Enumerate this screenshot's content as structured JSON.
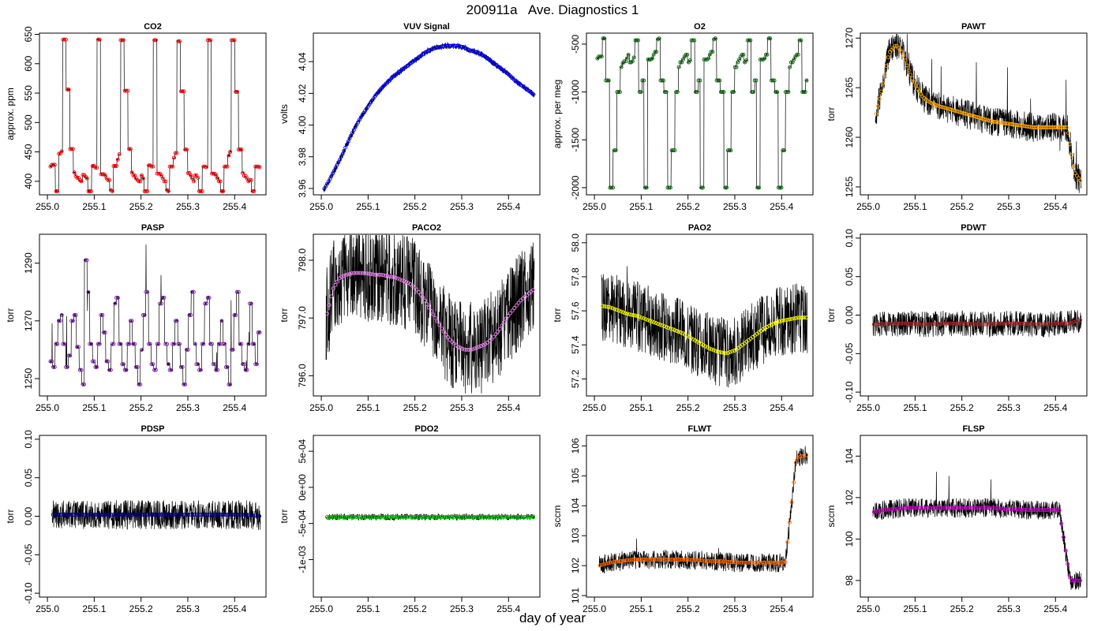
{
  "page": {
    "title": "200911a   Ave. Diagnostics 1",
    "xlabel": "day of year"
  },
  "chart_data": [
    {
      "type": "line",
      "title": "CO2",
      "ylabel": "approx. ppm",
      "ylim": [
        377,
        652
      ],
      "yticks": [
        {
          "v": 400,
          "label": "400"
        },
        {
          "v": 450,
          "label": "450"
        },
        {
          "v": 500,
          "label": "500"
        },
        {
          "v": 550,
          "label": "550"
        },
        {
          "v": 600,
          "label": "600"
        },
        {
          "v": 650,
          "label": "650"
        }
      ],
      "xlim": [
        254.983,
        255.467
      ],
      "xticks": [
        255.0,
        255.1,
        255.2,
        255.3,
        255.4
      ],
      "x_start": 255.005,
      "x_end": 255.455,
      "marker_color": "#ff0000",
      "marker_count": 150,
      "series": {
        "name": "",
        "values": [
          425,
          428,
          428,
          383,
          383,
          447,
          451,
          641,
          641,
          556,
          556,
          455,
          455,
          415,
          409,
          406,
          402,
          400,
          411,
          408,
          405,
          383,
          383,
          426,
          426,
          423,
          641,
          641,
          412,
          412,
          410,
          405,
          402,
          385,
          383,
          426,
          426,
          437,
          446,
          640,
          640,
          554,
          554,
          455,
          455,
          415,
          410,
          405,
          402,
          400,
          410,
          405,
          383,
          383,
          427,
          427,
          425,
          640,
          640,
          413,
          413,
          410,
          405,
          400,
          385,
          383,
          425,
          425,
          440,
          448,
          638,
          638,
          553,
          553,
          454,
          454,
          414,
          410,
          405,
          400,
          410,
          406,
          383,
          383,
          425,
          425,
          424,
          640,
          640,
          413,
          413,
          410,
          405,
          400,
          383,
          383,
          425,
          425,
          444,
          450,
          640,
          640,
          552,
          552,
          454,
          454,
          414,
          409,
          405,
          400,
          402,
          383,
          383,
          425,
          425,
          424
        ]
      }
    },
    {
      "type": "line",
      "title": "VUV Signal",
      "ylabel": "volts",
      "ylim": [
        3.956,
        4.058
      ],
      "yticks": [
        {
          "v": 3.96,
          "label": "3.96"
        },
        {
          "v": 3.98,
          "label": "3.98"
        },
        {
          "v": 4.0,
          "label": "4.00"
        },
        {
          "v": 4.02,
          "label": "4.02"
        },
        {
          "v": 4.04,
          "label": "4.04"
        }
      ],
      "xlim": [
        254.983,
        255.467
      ],
      "xticks": [
        255.0,
        255.1,
        255.2,
        255.3,
        255.4
      ],
      "x_start": 255.005,
      "x_end": 255.455,
      "marker_color": "#0000ff",
      "marker_count": 150,
      "series": {
        "name": "",
        "values": [
          3.959,
          3.966,
          3.974,
          3.982,
          3.991,
          3.999,
          4.006,
          4.012,
          4.018,
          4.023,
          4.027,
          4.031,
          4.034,
          4.037,
          4.04,
          4.043,
          4.046,
          4.048,
          4.049,
          4.05,
          4.05,
          4.05,
          4.049,
          4.047,
          4.046,
          4.044,
          4.041,
          4.038,
          4.035,
          4.032,
          4.028,
          4.025,
          4.022,
          4.019
        ]
      }
    },
    {
      "type": "line",
      "title": "O2",
      "ylabel": "approx. per meg",
      "ylim": [
        -2075,
        -385
      ],
      "yticks": [
        {
          "v": -2000,
          "label": "-2000"
        },
        {
          "v": -1500,
          "label": "-1500"
        },
        {
          "v": -1000,
          "label": "-1000"
        },
        {
          "v": -500,
          "label": "-500"
        }
      ],
      "xlim": [
        254.983,
        255.467
      ],
      "xticks": [
        255.0,
        255.1,
        255.2,
        255.3,
        255.4
      ],
      "x_start": 255.005,
      "x_end": 255.455,
      "marker_color": "#006400",
      "marker_count": 150,
      "series": {
        "name": "",
        "values": [
          -650,
          -630,
          -630,
          -440,
          -440,
          -880,
          -880,
          -2000,
          -2000,
          -1610,
          -1610,
          -1000,
          -1000,
          -740,
          -700,
          -680,
          -650,
          -610,
          -690,
          -680,
          -640,
          -460,
          -460,
          -1000,
          -1000,
          -880,
          -2000,
          -2000,
          -660,
          -660,
          -650,
          -610,
          -580,
          -450,
          -440,
          -880,
          -880,
          -1000,
          -1000,
          -2000,
          -2000,
          -1610,
          -1610,
          -1000,
          -1000,
          -740,
          -690,
          -660,
          -630,
          -610,
          -690,
          -670,
          -460,
          -460,
          -1000,
          -1000,
          -880,
          -2000,
          -2000,
          -660,
          -660,
          -650,
          -610,
          -580,
          -450,
          -440,
          -880,
          -880,
          -1000,
          -1000,
          -2000,
          -2000,
          -1610,
          -1610,
          -1000,
          -1000,
          -740,
          -690,
          -660,
          -630,
          -610,
          -690,
          -670,
          -460,
          -460,
          -1000,
          -1000,
          -880,
          -2000,
          -2000,
          -660,
          -660,
          -650,
          -610,
          -440,
          -440,
          -880,
          -880,
          -1000,
          -1000,
          -2000,
          -2000,
          -1610,
          -1610,
          -1000,
          -1000,
          -740,
          -690,
          -660,
          -630,
          -610,
          -460,
          -460,
          -1000,
          -1000,
          -880
        ]
      }
    },
    {
      "type": "line",
      "title": "PAWT",
      "ylabel": "torr",
      "ylim": [
        1254.2,
        1270.5
      ],
      "yticks": [
        {
          "v": 1255,
          "label": "1255"
        },
        {
          "v": 1260,
          "label": "1260"
        },
        {
          "v": 1265,
          "label": "1265"
        },
        {
          "v": 1270,
          "label": "1270"
        }
      ],
      "xlim": [
        254.983,
        255.467
      ],
      "xticks": [
        255.0,
        255.1,
        255.2,
        255.3,
        255.4
      ],
      "x_start": 255.015,
      "x_end": 255.455,
      "marker_color": "#ffa500",
      "marker_count": 120,
      "series": {
        "name": "",
        "values": [
          1262,
          1265,
          1268.5,
          1269.3,
          1268.5,
          1266.5,
          1265,
          1264,
          1263.5,
          1263.2,
          1263,
          1262.8,
          1262.6,
          1262.4,
          1262.2,
          1262,
          1261.8,
          1261.6,
          1261.5,
          1261.4,
          1261.3,
          1261.2,
          1261.1,
          1261,
          1261,
          1261,
          1261,
          1261,
          1261,
          1256.5,
          1255.5
        ]
      }
    },
    {
      "type": "line",
      "title": "PASP",
      "ylabel": "torr",
      "ylim": [
        1244,
        1300
      ],
      "yticks": [
        {
          "v": 1250,
          "label": "1250"
        },
        {
          "v": 1270,
          "label": "1270"
        },
        {
          "v": 1290,
          "label": "1290"
        }
      ],
      "xlim": [
        254.983,
        255.467
      ],
      "xticks": [
        255.0,
        255.1,
        255.2,
        255.3,
        255.4
      ],
      "x_start": 255.005,
      "x_end": 255.455,
      "marker_color": "#7b1fa2",
      "marker_count": 150,
      "series": {
        "name": "",
        "values": [
          1256,
          1254,
          1262,
          1270,
          1272,
          1262,
          1254,
          1258,
          1270,
          1272,
          1261,
          1253,
          1248,
          1291,
          1280,
          1262,
          1256,
          1254,
          1262,
          1272,
          1266,
          1256,
          1253,
          1262,
          1276,
          1278,
          1262,
          1255,
          1253,
          1262,
          1270,
          1262,
          1254,
          1248,
          1260,
          1272,
          1280,
          1262,
          1255,
          1253,
          1262,
          1276,
          1278,
          1262,
          1255,
          1253,
          1262,
          1270,
          1262,
          1254,
          1248,
          1260,
          1272,
          1280,
          1262,
          1255,
          1253,
          1262,
          1276,
          1278,
          1262,
          1255,
          1253,
          1262,
          1270,
          1262,
          1254,
          1248,
          1260,
          1272,
          1280,
          1262,
          1255,
          1253,
          1262,
          1276,
          1262,
          1255,
          1266
        ]
      }
    },
    {
      "type": "line",
      "title": "PACO2",
      "ylabel": "torr",
      "ylim": [
        795.65,
        798.45
      ],
      "yticks": [
        {
          "v": 796.0,
          "label": "796.0"
        },
        {
          "v": 797.0,
          "label": "797.0"
        },
        {
          "v": 798.0,
          "label": "798.0"
        }
      ],
      "xlim": [
        254.983,
        255.467
      ],
      "xticks": [
        255.0,
        255.1,
        255.2,
        255.3,
        255.4
      ],
      "x_start": 255.01,
      "x_end": 255.455,
      "marker_color": "#ee82ee",
      "marker_count": 100,
      "series": {
        "name": "",
        "values": [
          797.0,
          797.5,
          797.7,
          797.75,
          797.78,
          797.78,
          797.77,
          797.75,
          797.75,
          797.72,
          797.7,
          797.65,
          797.6,
          797.5,
          797.35,
          797.15,
          796.95,
          796.75,
          796.6,
          796.5,
          796.45,
          796.45,
          796.5,
          796.55,
          796.65,
          796.8,
          797.0,
          797.15,
          797.3,
          797.4,
          797.5
        ]
      }
    },
    {
      "type": "line",
      "title": "PAO2",
      "ylabel": "torr",
      "ylim": [
        57.1,
        58.05
      ],
      "yticks": [
        {
          "v": 57.2,
          "label": "57.2"
        },
        {
          "v": 57.4,
          "label": "57.4"
        },
        {
          "v": 57.6,
          "label": "57.6"
        },
        {
          "v": 57.8,
          "label": "57.8"
        },
        {
          "v": 58.0,
          "label": "58.0"
        }
      ],
      "xlim": [
        254.983,
        255.467
      ],
      "xticks": [
        255.0,
        255.1,
        255.2,
        255.3,
        255.4
      ],
      "x_start": 255.015,
      "x_end": 255.455,
      "marker_color": "#ffff00",
      "marker_count": 100,
      "series": {
        "name": "",
        "values": [
          57.63,
          57.62,
          57.6,
          57.58,
          57.57,
          57.55,
          57.53,
          57.51,
          57.49,
          57.47,
          57.44,
          57.41,
          57.38,
          57.36,
          57.35,
          57.37,
          57.41,
          57.45,
          57.49,
          57.52,
          57.54,
          57.55,
          57.56,
          57.56
        ]
      }
    },
    {
      "type": "line",
      "title": "PDWT",
      "ylabel": "torr",
      "ylim": [
        -0.105,
        0.105
      ],
      "yticks": [
        {
          "v": -0.1,
          "label": "-0.10"
        },
        {
          "v": -0.05,
          "label": "-0.05"
        },
        {
          "v": 0.0,
          "label": "0.00"
        },
        {
          "v": 0.05,
          "label": "0.05"
        },
        {
          "v": 0.1,
          "label": "0.10"
        }
      ],
      "xlim": [
        254.983,
        255.467
      ],
      "xticks": [
        255.0,
        255.1,
        255.2,
        255.3,
        255.4
      ],
      "x_start": 255.01,
      "x_end": 255.455,
      "marker_color": "#a52a2a",
      "marker_count": 100,
      "series": {
        "name": "",
        "values": [
          -0.012,
          -0.012,
          -0.011,
          -0.011,
          -0.012,
          -0.012,
          -0.011,
          -0.011,
          -0.011,
          -0.012,
          -0.012,
          -0.011,
          -0.011,
          -0.011,
          -0.012,
          -0.012,
          -0.011,
          -0.011,
          -0.006
        ]
      }
    },
    {
      "type": "line",
      "title": "PDSP",
      "ylabel": "torr",
      "ylim": [
        -0.105,
        0.105
      ],
      "yticks": [
        {
          "v": -0.1,
          "label": "-0.10"
        },
        {
          "v": -0.05,
          "label": "-0.05"
        },
        {
          "v": 0.0,
          "label": "0.00"
        },
        {
          "v": 0.05,
          "label": "0.05"
        },
        {
          "v": 0.1,
          "label": "0.10"
        }
      ],
      "xlim": [
        254.983,
        255.467
      ],
      "xticks": [
        255.0,
        255.1,
        255.2,
        255.3,
        255.4
      ],
      "x_start": 255.01,
      "x_end": 255.455,
      "marker_color": "#00008b",
      "marker_count": 100,
      "series": {
        "name": "",
        "values": [
          0.002,
          0.002,
          0.002,
          0.002,
          0.002,
          0.002,
          0.002,
          0.002,
          0.002,
          0.002,
          0.002,
          0.002,
          0.002,
          0.002,
          0.002,
          0.0
        ]
      }
    },
    {
      "type": "line",
      "title": "PDO2",
      "ylabel": "torr",
      "ylim": [
        -0.00152,
        0.00072
      ],
      "yticks": [
        {
          "v": -0.001,
          "label": "-1e-03"
        },
        {
          "v": -0.0005,
          "label": "-5e-04"
        },
        {
          "v": 0.0,
          "label": "0e+00"
        },
        {
          "v": 0.0005,
          "label": "5e-04"
        }
      ],
      "xlim": [
        254.983,
        255.467
      ],
      "xticks": [
        255.0,
        255.1,
        255.2,
        255.3,
        255.4
      ],
      "x_start": 255.01,
      "x_end": 255.455,
      "marker_color": "#00cc00",
      "marker_count": 100,
      "series": {
        "name": "",
        "values": [
          -0.00041,
          -0.00041,
          -0.00041,
          -0.00041,
          -0.00041,
          -0.00041
        ]
      }
    },
    {
      "type": "line",
      "title": "FLWT",
      "ylabel": "sccm",
      "ylim": [
        100.95,
        106.35
      ],
      "yticks": [
        {
          "v": 101,
          "label": "101"
        },
        {
          "v": 102,
          "label": "102"
        },
        {
          "v": 103,
          "label": "103"
        },
        {
          "v": 104,
          "label": "104"
        },
        {
          "v": 105,
          "label": "105"
        },
        {
          "v": 106,
          "label": "106"
        }
      ],
      "xlim": [
        254.983,
        255.467
      ],
      "xticks": [
        255.0,
        255.1,
        255.2,
        255.3,
        255.4
      ],
      "x_start": 255.01,
      "x_end": 255.455,
      "marker_color": "#ff6600",
      "marker_count": 100,
      "series": {
        "name": "",
        "values": [
          102.0,
          102.1,
          102.15,
          102.2,
          102.2,
          102.2,
          102.2,
          102.2,
          102.2,
          102.18,
          102.15,
          102.15,
          102.12,
          102.1,
          102.1,
          102.1,
          102.1,
          102.1,
          105.6,
          105.7
        ]
      }
    },
    {
      "type": "line",
      "title": "FLSP",
      "ylabel": "sccm",
      "ylim": [
        97.2,
        105.0
      ],
      "yticks": [
        {
          "v": 98,
          "label": "98"
        },
        {
          "v": 100,
          "label": "100"
        },
        {
          "v": 102,
          "label": "102"
        },
        {
          "v": 104,
          "label": "104"
        }
      ],
      "xlim": [
        254.983,
        255.467
      ],
      "xticks": [
        255.0,
        255.1,
        255.2,
        255.3,
        255.4
      ],
      "x_start": 255.01,
      "x_end": 255.455,
      "marker_color": "#cc00cc",
      "marker_count": 100,
      "series": {
        "name": "",
        "values": [
          101.3,
          101.4,
          101.45,
          101.5,
          101.5,
          101.5,
          101.5,
          101.5,
          101.5,
          101.5,
          101.5,
          101.5,
          101.45,
          101.45,
          101.4,
          101.4,
          101.4,
          101.4,
          98.0,
          98.0
        ]
      }
    }
  ]
}
